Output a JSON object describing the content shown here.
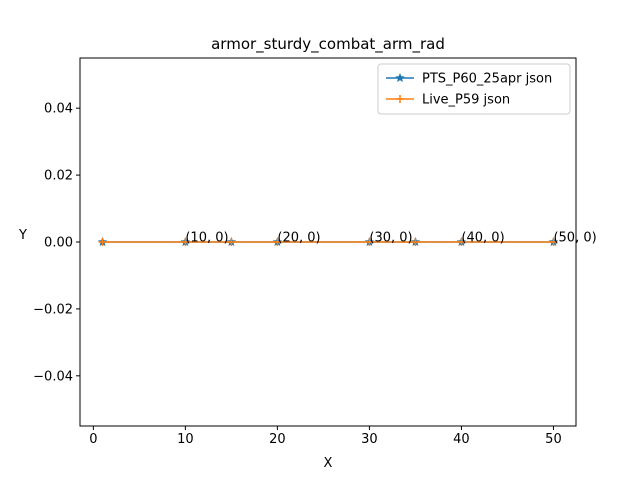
{
  "chart_data": {
    "type": "line",
    "title": "armor_sturdy_combat_arm_rad",
    "xlabel": "X",
    "ylabel": "Y",
    "xlim": [
      -1.45,
      52.45
    ],
    "ylim": [
      -0.055,
      0.055
    ],
    "x_ticks": [
      0,
      10,
      20,
      30,
      40,
      50
    ],
    "x_tick_labels": [
      "0",
      "10",
      "20",
      "30",
      "40",
      "50"
    ],
    "y_ticks": [
      -0.04,
      -0.02,
      0.0,
      0.02,
      0.04
    ],
    "y_tick_labels": [
      "−0.04",
      "−0.02",
      "0.00",
      "0.02",
      "0.04"
    ],
    "grid": false,
    "legend_position": "top-right",
    "series": [
      {
        "name": "PTS_P60_25apr json",
        "color": "#1f77b4",
        "marker": "star",
        "x": [
          1,
          10,
          15,
          20,
          30,
          35,
          40,
          50
        ],
        "y": [
          0,
          0,
          0,
          0,
          0,
          0,
          0,
          0
        ]
      },
      {
        "name": "Live_P59 json",
        "color": "#ff7f0e",
        "marker": "plus",
        "x": [
          1,
          10,
          15,
          20,
          30,
          35,
          40,
          50
        ],
        "y": [
          0,
          0,
          0,
          0,
          0,
          0,
          0,
          0
        ]
      }
    ],
    "annotations": [
      {
        "x": 10,
        "y": 0,
        "text": "(10, 0)"
      },
      {
        "x": 20,
        "y": 0,
        "text": "(20, 0)"
      },
      {
        "x": 30,
        "y": 0,
        "text": "(30, 0)"
      },
      {
        "x": 40,
        "y": 0,
        "text": "(40, 0)"
      },
      {
        "x": 50,
        "y": 0,
        "text": "(50, 0)"
      }
    ]
  }
}
